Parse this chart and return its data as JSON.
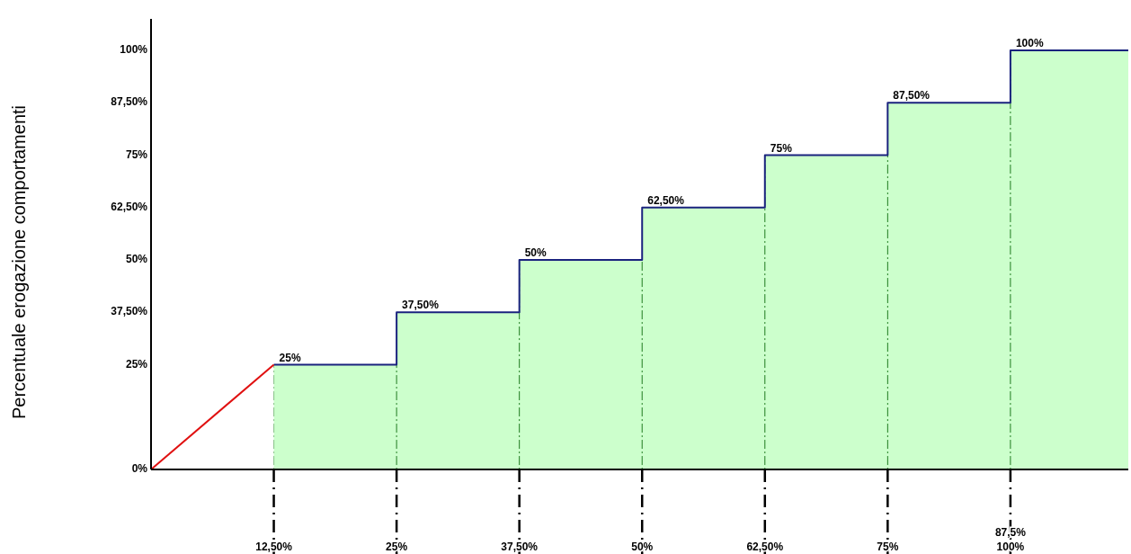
{
  "chart_data": {
    "type": "step",
    "ylabel": "Percentuale erogazione comportamenti",
    "xlim": [
      0,
      99.5
    ],
    "ylim": [
      0,
      107.5
    ],
    "xticks": [
      {
        "value": 12.5,
        "label": "12,50%"
      },
      {
        "value": 25,
        "label": "25%"
      },
      {
        "value": 37.5,
        "label": "37,50%"
      },
      {
        "value": 50,
        "label": "50%"
      },
      {
        "value": 62.5,
        "label": "62,50%"
      },
      {
        "value": 75,
        "label": "75%"
      },
      {
        "value": 87.5,
        "label": "87,5%\n100%"
      }
    ],
    "yticks": [
      {
        "value": 0,
        "label": "0%"
      },
      {
        "value": 25,
        "label": "25%"
      },
      {
        "value": 37.5,
        "label": "37,50%"
      },
      {
        "value": 50,
        "label": "50%"
      },
      {
        "value": 62.5,
        "label": "62,50%"
      },
      {
        "value": 75,
        "label": "75%"
      },
      {
        "value": 87.5,
        "label": "87,50%"
      },
      {
        "value": 100,
        "label": "100%"
      }
    ],
    "grid": "x",
    "series": [
      {
        "type": "area",
        "color": "#ccffcc",
        "x": [
          12.5,
          25,
          37.5,
          50,
          62.5,
          75,
          87.5,
          99.5
        ],
        "values": [
          25,
          37.5,
          50,
          62.5,
          75,
          87.5,
          100,
          100
        ]
      },
      {
        "type": "step",
        "color": "#1a237e",
        "x": [
          12.5,
          25,
          37.5,
          50,
          62.5,
          75,
          87.5,
          99.5
        ],
        "values": [
          25,
          37.5,
          50,
          62.5,
          75,
          87.5,
          100,
          100
        ],
        "value_labels": [
          "25%",
          "37,50%",
          "50%",
          "62,50%",
          "75%",
          "87,50%",
          "100%",
          null
        ]
      },
      {
        "type": "line",
        "color": "#e01010",
        "x": [
          0,
          12.5
        ],
        "values": [
          0,
          25
        ]
      }
    ]
  }
}
